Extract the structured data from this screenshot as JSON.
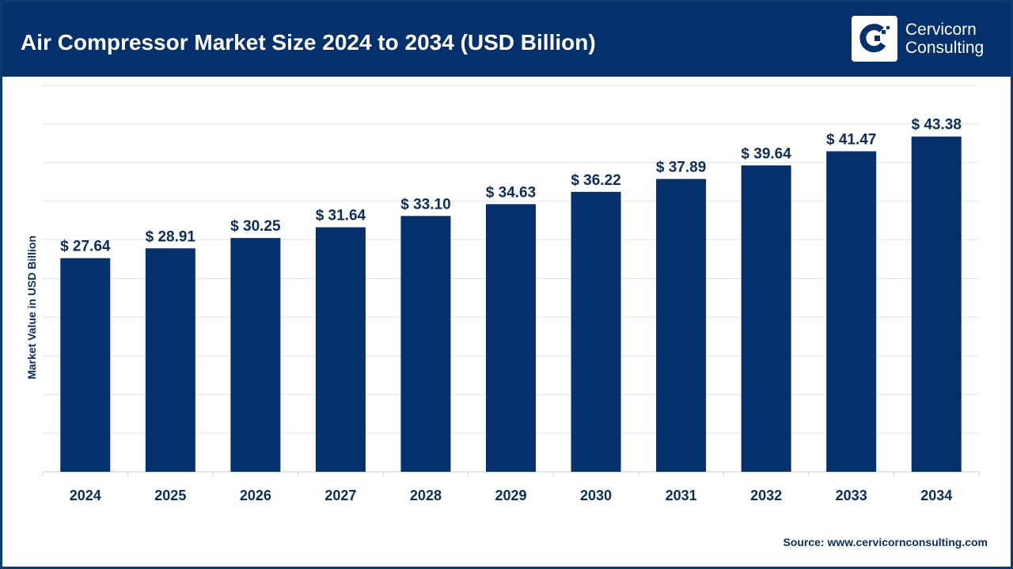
{
  "header": {
    "title": "Air Compressor Market Size 2024 to 2034 (USD Billion)",
    "logo_line1": "Cervicorn",
    "logo_line2": "Consulting"
  },
  "source": "Source: www.cervicornconsulting.com",
  "colors": {
    "bar": "#04306b",
    "header": "#04306b",
    "grid": "#e3e3e3"
  },
  "chart_data": {
    "type": "bar",
    "title": "Air Compressor Market Size 2024 to 2034 (USD Billion)",
    "xlabel": "",
    "ylabel": "Market Value in USD Billion",
    "categories": [
      "2024",
      "2025",
      "2026",
      "2027",
      "2028",
      "2029",
      "2030",
      "2031",
      "2032",
      "2033",
      "2034"
    ],
    "values": [
      27.64,
      28.91,
      30.25,
      31.64,
      33.1,
      34.63,
      36.22,
      37.89,
      39.64,
      41.47,
      43.38
    ],
    "data_labels": [
      "$ 27.64",
      "$ 28.91",
      "$ 30.25",
      "$ 31.64",
      "$ 33.10",
      "$ 34.63",
      "$ 36.22",
      "$ 37.89",
      "$ 39.64",
      "$ 41.47",
      "$ 43.38"
    ],
    "ylim": [
      0,
      50
    ],
    "grid_step": 5,
    "grid": true,
    "legend": "none"
  }
}
